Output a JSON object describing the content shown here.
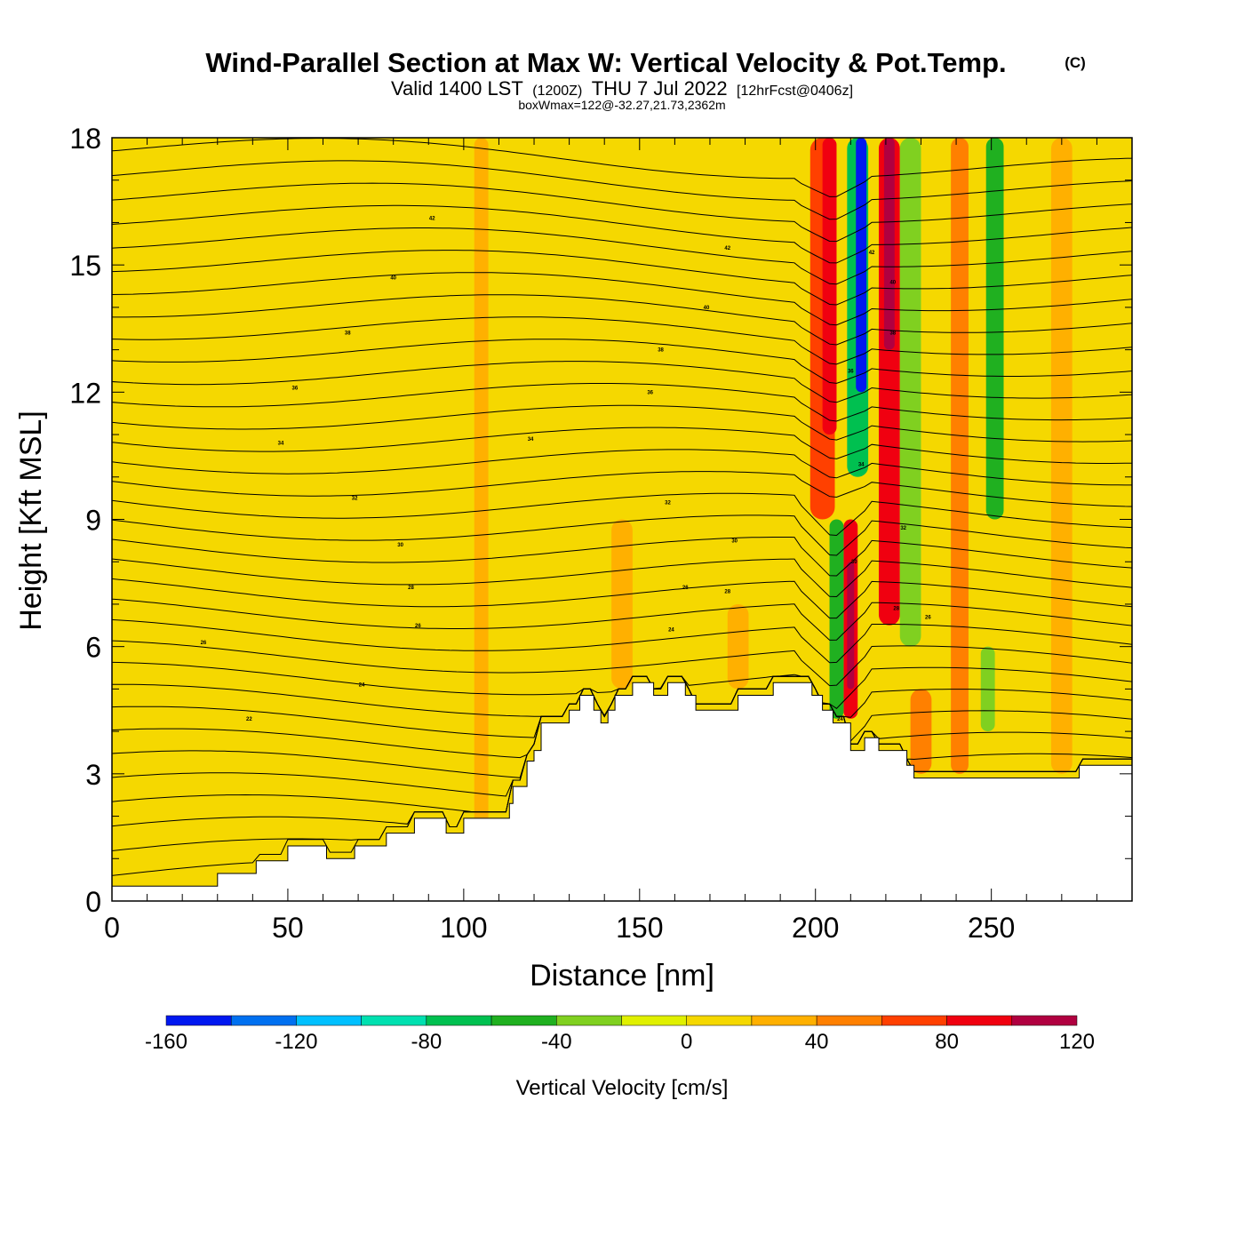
{
  "title": {
    "main": "Wind-Parallel Section at Max W: Vertical Velocity & Pot.Temp.",
    "copyright": "(C)",
    "valid_prefix": "Valid 1400 LST",
    "valid_utc": "(1200Z)",
    "valid_date": "THU 7 Jul 2022",
    "forecast": "[12hrFcst@0406z]",
    "boxwmax": "boxWmax=122@-32.27,21.73,2362m"
  },
  "chart_data": {
    "type": "heatmap",
    "xlabel": "Distance [nm]",
    "ylabel": "Height [Kft MSL]",
    "xlim": [
      0,
      290
    ],
    "ylim": [
      0,
      18
    ],
    "x_ticks": [
      "0",
      "50",
      "100",
      "150",
      "200",
      "250"
    ],
    "y_ticks": [
      "0",
      "3",
      "6",
      "9",
      "12",
      "15",
      "18"
    ],
    "x_tick_values": [
      0,
      50,
      100,
      150,
      200,
      250
    ],
    "y_tick_values": [
      0,
      3,
      6,
      9,
      12,
      15,
      18
    ],
    "background_field_color": "#f5d800",
    "terrain_kft": [
      [
        0,
        0.35
      ],
      [
        30,
        0.35
      ],
      [
        30,
        0.65
      ],
      [
        41,
        0.65
      ],
      [
        41,
        0.95
      ],
      [
        50,
        0.95
      ],
      [
        50,
        1.3
      ],
      [
        61,
        1.3
      ],
      [
        61,
        1.0
      ],
      [
        69,
        1.0
      ],
      [
        69,
        1.3
      ],
      [
        78,
        1.3
      ],
      [
        78,
        1.6
      ],
      [
        86,
        1.6
      ],
      [
        86,
        1.95
      ],
      [
        95,
        1.95
      ],
      [
        95,
        1.6
      ],
      [
        100,
        1.6
      ],
      [
        100,
        1.95
      ],
      [
        113,
        1.95
      ],
      [
        113,
        2.3
      ],
      [
        114,
        2.3
      ],
      [
        114,
        2.7
      ],
      [
        118,
        2.7
      ],
      [
        118,
        3.3
      ],
      [
        120,
        3.3
      ],
      [
        120,
        3.55
      ],
      [
        122,
        3.55
      ],
      [
        122,
        4.2
      ],
      [
        130,
        4.2
      ],
      [
        130,
        4.5
      ],
      [
        133,
        4.5
      ],
      [
        133,
        4.85
      ],
      [
        137,
        4.85
      ],
      [
        137,
        4.5
      ],
      [
        139,
        4.5
      ],
      [
        139,
        4.2
      ],
      [
        141,
        4.2
      ],
      [
        141,
        4.5
      ],
      [
        143,
        4.5
      ],
      [
        143,
        4.85
      ],
      [
        148,
        4.85
      ],
      [
        148,
        5.15
      ],
      [
        154,
        5.15
      ],
      [
        154,
        4.85
      ],
      [
        158,
        4.85
      ],
      [
        158,
        5.15
      ],
      [
        163,
        5.15
      ],
      [
        163,
        4.85
      ],
      [
        166,
        4.85
      ],
      [
        166,
        4.5
      ],
      [
        178,
        4.5
      ],
      [
        178,
        4.85
      ],
      [
        188,
        4.85
      ],
      [
        188,
        5.15
      ],
      [
        199,
        5.15
      ],
      [
        199,
        4.85
      ],
      [
        202,
        4.85
      ],
      [
        202,
        4.5
      ],
      [
        205,
        4.5
      ],
      [
        205,
        4.2
      ],
      [
        210,
        4.2
      ],
      [
        210,
        3.55
      ],
      [
        214,
        3.55
      ],
      [
        214,
        3.85
      ],
      [
        218,
        3.85
      ],
      [
        218,
        3.55
      ],
      [
        226,
        3.55
      ],
      [
        226,
        3.2
      ],
      [
        228,
        3.2
      ],
      [
        228,
        2.9
      ],
      [
        275,
        2.9
      ],
      [
        275,
        3.2
      ],
      [
        290,
        3.2
      ]
    ],
    "velocity_features": [
      {
        "x": 105,
        "y1": 0.4,
        "y2": 18,
        "w": 4,
        "value": 30
      },
      {
        "x": 145,
        "y1": 5,
        "y2": 9,
        "w": 6,
        "value": 20
      },
      {
        "x": 178,
        "y1": 5,
        "y2": 7,
        "w": 6,
        "value": 20
      },
      {
        "x": 202,
        "y1": 9,
        "y2": 18,
        "w": 7,
        "value": 70
      },
      {
        "x": 204,
        "y1": 11,
        "y2": 18,
        "w": 4,
        "value": 95
      },
      {
        "x": 212,
        "y1": 10,
        "y2": 18,
        "w": 6,
        "value": -80
      },
      {
        "x": 213,
        "y1": 12,
        "y2": 18,
        "w": 3,
        "value": -150
      },
      {
        "x": 210,
        "y1": 4.3,
        "y2": 9,
        "w": 4,
        "value": 90
      },
      {
        "x": 210,
        "y1": 5,
        "y2": 8,
        "w": 2,
        "value": 122
      },
      {
        "x": 206,
        "y1": 4.3,
        "y2": 9,
        "w": 4,
        "value": -50
      },
      {
        "x": 221,
        "y1": 6.5,
        "y2": 18,
        "w": 6,
        "value": 80
      },
      {
        "x": 221,
        "y1": 13,
        "y2": 18,
        "w": 3,
        "value": 110
      },
      {
        "x": 227,
        "y1": 6,
        "y2": 18,
        "w": 6,
        "value": -40
      },
      {
        "x": 230,
        "y1": 3,
        "y2": 5,
        "w": 6,
        "value": 40
      },
      {
        "x": 241,
        "y1": 3,
        "y2": 18,
        "w": 5,
        "value": 40
      },
      {
        "x": 251,
        "y1": 9,
        "y2": 18,
        "w": 5,
        "value": -50
      },
      {
        "x": 249,
        "y1": 4,
        "y2": 6,
        "w": 4,
        "value": -40
      },
      {
        "x": 270,
        "y1": 3,
        "y2": 18,
        "w": 6,
        "value": 30
      }
    ],
    "contour_labels": [
      {
        "text": "42",
        "x": 91,
        "y": 16.1
      },
      {
        "text": "40",
        "x": 80,
        "y": 14.7
      },
      {
        "text": "38",
        "x": 67,
        "y": 13.4
      },
      {
        "text": "36",
        "x": 52,
        "y": 12.1
      },
      {
        "text": "34",
        "x": 48,
        "y": 10.8
      },
      {
        "text": "32",
        "x": 69,
        "y": 9.5
      },
      {
        "text": "30",
        "x": 82,
        "y": 8.4
      },
      {
        "text": "28",
        "x": 85,
        "y": 7.4
      },
      {
        "text": "26",
        "x": 87,
        "y": 6.5
      },
      {
        "text": "26",
        "x": 26,
        "y": 6.1
      },
      {
        "text": "24",
        "x": 71,
        "y": 5.1
      },
      {
        "text": "22",
        "x": 39,
        "y": 4.3
      },
      {
        "text": "42",
        "x": 175,
        "y": 15.4
      },
      {
        "text": "40",
        "x": 169,
        "y": 14.0
      },
      {
        "text": "38",
        "x": 156,
        "y": 13.0
      },
      {
        "text": "36",
        "x": 153,
        "y": 12.0
      },
      {
        "text": "34",
        "x": 119,
        "y": 10.9
      },
      {
        "text": "32",
        "x": 158,
        "y": 9.4
      },
      {
        "text": "30",
        "x": 177,
        "y": 8.5
      },
      {
        "text": "28",
        "x": 175,
        "y": 7.3
      },
      {
        "text": "26",
        "x": 163,
        "y": 7.4
      },
      {
        "text": "24",
        "x": 159,
        "y": 6.4
      },
      {
        "text": "42",
        "x": 216,
        "y": 15.3
      },
      {
        "text": "40",
        "x": 222,
        "y": 14.6
      },
      {
        "text": "38",
        "x": 222,
        "y": 13.4
      },
      {
        "text": "36",
        "x": 210,
        "y": 12.5
      },
      {
        "text": "34",
        "x": 213,
        "y": 10.3
      },
      {
        "text": "32",
        "x": 225,
        "y": 8.8
      },
      {
        "text": "30",
        "x": 211,
        "y": 8.0
      },
      {
        "text": "28",
        "x": 223,
        "y": 6.9
      },
      {
        "text": "26",
        "x": 232,
        "y": 6.7
      },
      {
        "text": "24",
        "x": 207,
        "y": 4.3
      }
    ],
    "colorbar": {
      "title": "Vertical Velocity [cm/s]",
      "bins": [
        -160,
        -140,
        -120,
        -100,
        -80,
        -60,
        -40,
        -20,
        0,
        20,
        40,
        60,
        80,
        100,
        120
      ],
      "colors": [
        "#0018f0",
        "#0070f0",
        "#00c0ff",
        "#00e0b0",
        "#00c050",
        "#20b020",
        "#80d020",
        "#e0f000",
        "#f5d800",
        "#ffb000",
        "#ff8000",
        "#ff4000",
        "#f00010",
        "#b00040"
      ],
      "labels": [
        "-160",
        "-120",
        "-80",
        "-40",
        "0",
        "40",
        "80",
        "120"
      ]
    }
  }
}
